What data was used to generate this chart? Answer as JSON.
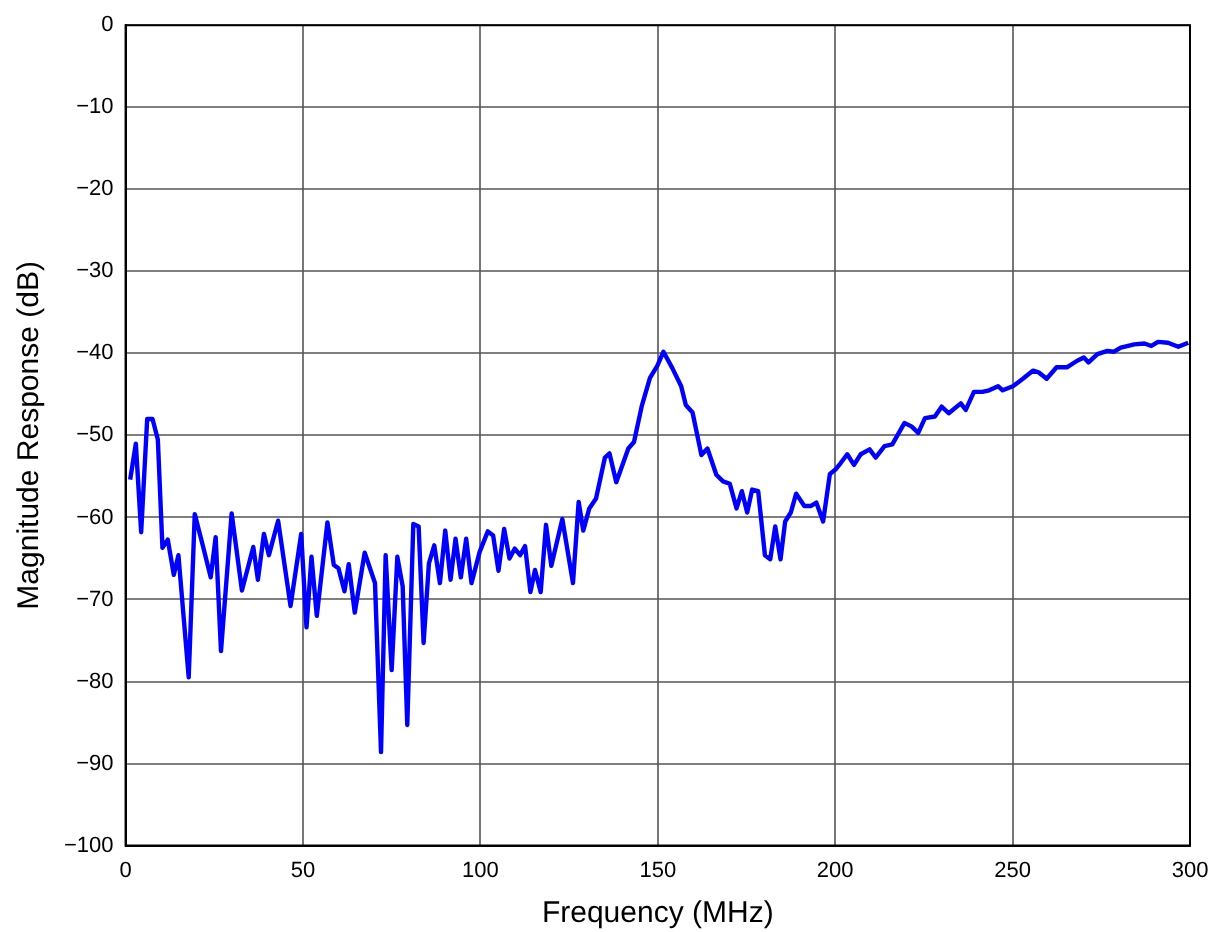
{
  "chart_data": {
    "type": "line",
    "xlabel": "Frequency (MHz)",
    "ylabel": "Magnitude Response (dB)",
    "xlim": [
      0,
      300
    ],
    "xticks": [
      0,
      50,
      100,
      150,
      200,
      250,
      300
    ],
    "ylim": [
      -100,
      0
    ],
    "yticks": [
      -100,
      -90,
      -80,
      -70,
      -60,
      -50,
      -40,
      -30,
      -20,
      -10,
      0
    ],
    "grid": true,
    "legend": false,
    "marker": "none",
    "line_style": "solid",
    "series": [
      {
        "color": "#0000ff",
        "x": [
          1.3,
          2.9,
          4.4,
          6.1,
          7.6,
          9.1,
          10.4,
          11.9,
          13.6,
          14.9,
          17.8,
          19.5,
          21.7,
          24,
          25.4,
          26.9,
          29.9,
          32.8,
          36,
          37.3,
          39,
          40.4,
          43,
          46.5,
          49.5,
          51,
          52.4,
          53.9,
          56.9,
          58.7,
          60,
          61.7,
          62.9,
          64.6,
          67.4,
          70.3,
          72,
          73.3,
          75,
          76.6,
          78.1,
          79.4,
          81.1,
          82.6,
          84,
          85.5,
          87,
          88.6,
          90.1,
          91.6,
          93,
          94.5,
          96,
          97.5,
          99.8,
          102.1,
          103.6,
          105.1,
          106.7,
          108.2,
          109.7,
          111.2,
          112.6,
          114.1,
          115.4,
          117,
          118.5,
          120,
          123.1,
          126.1,
          127.7,
          129,
          130.7,
          132.6,
          135.1,
          136.4,
          138.3,
          141.7,
          143.3,
          145.5,
          147.8,
          149.9,
          151.6,
          154.1,
          156.6,
          157.9,
          159.8,
          162.3,
          164,
          166.5,
          168.4,
          170.3,
          172.2,
          173.7,
          175.2,
          176.6,
          178.3,
          180.2,
          181.7,
          183.1,
          184.6,
          185.9,
          187.5,
          189,
          191.3,
          193.2,
          194.7,
          196.6,
          198.5,
          200,
          201.5,
          203.4,
          205.3,
          207.2,
          209.7,
          211.4,
          213.9,
          216.1,
          219.5,
          221.5,
          223.4,
          225.3,
          228.1,
          230,
          232,
          235.4,
          236.8,
          239.1,
          241.5,
          243.4,
          245.9,
          247.2,
          250.1,
          252.9,
          255.8,
          257.3,
          259.6,
          262.4,
          265.3,
          268.2,
          270.1,
          271.4,
          273.9,
          276.7,
          278.6,
          280.5,
          284.3,
          287.2,
          289.1,
          291,
          293.8,
          296.7,
          299.5
        ],
        "values": [
          -55.4,
          -51,
          -61.8,
          -48,
          -48,
          -50.5,
          -63.7,
          -62.7,
          -67,
          -64.6,
          -79.5,
          -59.6,
          -63.3,
          -67.3,
          -62.4,
          -76.3,
          -59.5,
          -68.9,
          -63.6,
          -67.6,
          -62,
          -64.6,
          -60.4,
          -70.8,
          -62,
          -73.4,
          -64.8,
          -72,
          -60.6,
          -65.8,
          -66.2,
          -69,
          -65.7,
          -71.6,
          -64.3,
          -68,
          -88.6,
          -64.6,
          -78.6,
          -64.8,
          -68.4,
          -85.3,
          -60.8,
          -61.1,
          -75.3,
          -65.6,
          -63.4,
          -68,
          -61.6,
          -67.6,
          -62.6,
          -67.3,
          -62.6,
          -68,
          -64.2,
          -61.7,
          -62.2,
          -66.5,
          -61.4,
          -65,
          -63.8,
          -64.6,
          -63.5,
          -69.1,
          -66.4,
          -69.1,
          -60.9,
          -65.9,
          -60.2,
          -68,
          -58.1,
          -61.6,
          -58.9,
          -57.7,
          -52.7,
          -52.2,
          -55.7,
          -51.6,
          -50.8,
          -46.4,
          -43,
          -41.5,
          -39.8,
          -41.8,
          -44,
          -46.3,
          -47.2,
          -52.4,
          -51.6,
          -54.8,
          -55.6,
          -55.9,
          -58.9,
          -56.8,
          -59.4,
          -56.6,
          -56.8,
          -64.6,
          -65.1,
          -61.1,
          -65.1,
          -60.5,
          -59.4,
          -57.1,
          -58.6,
          -58.6,
          -58.2,
          -60.5,
          -54.7,
          -54.2,
          -53.4,
          -52.3,
          -53.6,
          -52.3,
          -51.7,
          -52.7,
          -51.3,
          -51.1,
          -48.5,
          -48.9,
          -49.7,
          -47.9,
          -47.7,
          -46.5,
          -47.3,
          -46.1,
          -46.9,
          -44.7,
          -44.7,
          -44.5,
          -44,
          -44.5,
          -44,
          -43.1,
          -42.1,
          -42.3,
          -43.1,
          -41.7,
          -41.7,
          -40.9,
          -40.5,
          -41.1,
          -40.1,
          -39.7,
          -39.8,
          -39.3,
          -38.9,
          -38.8,
          -39.1,
          -38.6,
          -38.7,
          -39.2,
          -38.7
        ]
      }
    ]
  }
}
